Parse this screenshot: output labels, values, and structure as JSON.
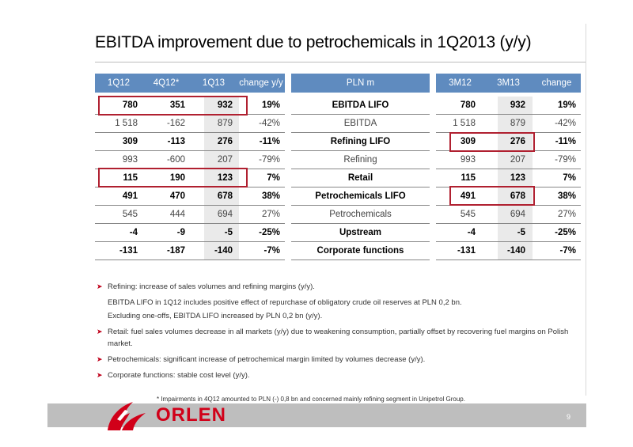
{
  "title": "EBITDA improvement due to petrochemicals in 1Q2013 (y/y)",
  "table": {
    "left_headers": [
      "1Q12",
      "4Q12*",
      "1Q13",
      "change y/y"
    ],
    "middle_header": "PLN m",
    "right_headers": [
      "3M12",
      "3M13",
      "change"
    ],
    "rows": [
      {
        "label": "EBITDA LIFO",
        "q1q12": "780",
        "q4q12": "351",
        "q1q13": "932",
        "chg": "19%",
        "m12": "780",
        "m13": "932",
        "chg2": "19%"
      },
      {
        "label": "EBITDA",
        "q1q12": "1 518",
        "q4q12": "-162",
        "q1q13": "879",
        "chg": "-42%",
        "m12": "1 518",
        "m13": "879",
        "chg2": "-42%"
      },
      {
        "label": "Refining LIFO",
        "q1q12": "309",
        "q4q12": "-113",
        "q1q13": "276",
        "chg": "-11%",
        "m12": "309",
        "m13": "276",
        "chg2": "-11%"
      },
      {
        "label": "Refining",
        "q1q12": "993",
        "q4q12": "-600",
        "q1q13": "207",
        "chg": "-79%",
        "m12": "993",
        "m13": "207",
        "chg2": "-79%"
      },
      {
        "label": "Retail",
        "q1q12": "115",
        "q4q12": "190",
        "q1q13": "123",
        "chg": "7%",
        "m12": "115",
        "m13": "123",
        "chg2": "7%"
      },
      {
        "label": "Petrochemicals LIFO",
        "q1q12": "491",
        "q4q12": "470",
        "q1q13": "678",
        "chg": "38%",
        "m12": "491",
        "m13": "678",
        "chg2": "38%"
      },
      {
        "label": "Petrochemicals",
        "q1q12": "545",
        "q4q12": "444",
        "q1q13": "694",
        "chg": "27%",
        "m12": "545",
        "m13": "694",
        "chg2": "27%"
      },
      {
        "label": "Upstream",
        "q1q12": "-4",
        "q4q12": "-9",
        "q1q13": "-5",
        "chg": "-25%",
        "m12": "-4",
        "m13": "-5",
        "chg2": "-25%"
      },
      {
        "label": "Corporate functions",
        "q1q12": "-131",
        "q4q12": "-187",
        "q1q13": "-140",
        "chg": "-7%",
        "m12": "-131",
        "m13": "-140",
        "chg2": "-7%"
      }
    ]
  },
  "bullets": [
    "Refining: increase of sales volumes and refining margins (y/y).",
    "EBITDA LIFO in 1Q12 includes positive effect of repurchase of obligatory crude oil reserves at PLN 0,2 bn.",
    "Excluding one-offs, EBITDA LIFO increased by PLN 0,2 bn (y/y).",
    "Retail: fuel sales volumes decrease in all markets (y/y) due to weakening consumption, partially offset by recovering fuel margins on Polish",
    "market.",
    "Petrochemicals: significant increase of petrochemical margin limited by volumes decrease (y/y).",
    "Corporate functions: stable cost level (y/y)."
  ],
  "footnote": "* Impairments in 4Q12 amounted to PLN (-) 0,8 bn and concerned mainly refining segment in Unipetrol Group.",
  "logo": "ORLEN",
  "page_number": "9",
  "colors": {
    "header": "#5f8bbf",
    "highlight_box": "#b02030",
    "brand": "#d10019"
  }
}
